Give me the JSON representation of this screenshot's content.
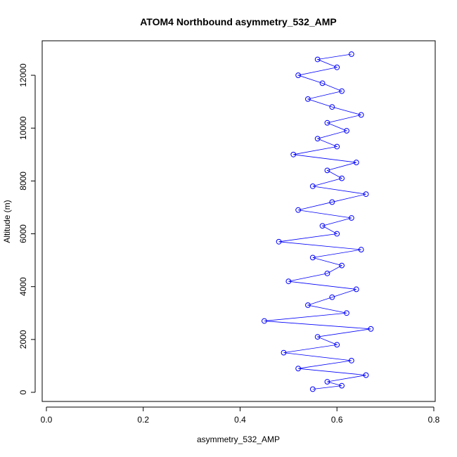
{
  "chart_data": {
    "type": "scatter",
    "title": "ATOM4 Northbound asymmetry_532_AMP",
    "xlabel": "asymmetry_532_AMP",
    "ylabel": "Altitude (m)",
    "xlim": [
      0.0,
      0.8
    ],
    "ylim": [
      0,
      12800
    ],
    "x_ticks": [
      "0.0",
      "0.2",
      "0.4",
      "0.6",
      "0.8"
    ],
    "y_ticks": [
      "0",
      "2000",
      "4000",
      "6000",
      "8000",
      "10000",
      "12000"
    ],
    "grid": false,
    "legend": "none",
    "color": "#0000ff",
    "style": "points connected by lines (open circles)",
    "series": [
      {
        "values": [
          [
            0.55,
            120
          ],
          [
            0.61,
            250
          ],
          [
            0.58,
            400
          ],
          [
            0.66,
            650
          ],
          [
            0.52,
            900
          ],
          [
            0.63,
            1200
          ],
          [
            0.49,
            1500
          ],
          [
            0.6,
            1800
          ],
          [
            0.56,
            2100
          ],
          [
            0.67,
            2400
          ],
          [
            0.45,
            2700
          ],
          [
            0.62,
            3000
          ],
          [
            0.54,
            3300
          ],
          [
            0.59,
            3600
          ],
          [
            0.64,
            3900
          ],
          [
            0.5,
            4200
          ],
          [
            0.58,
            4500
          ],
          [
            0.61,
            4800
          ],
          [
            0.55,
            5100
          ],
          [
            0.65,
            5400
          ],
          [
            0.48,
            5700
          ],
          [
            0.6,
            6000
          ],
          [
            0.57,
            6300
          ],
          [
            0.63,
            6600
          ],
          [
            0.52,
            6900
          ],
          [
            0.59,
            7200
          ],
          [
            0.66,
            7500
          ],
          [
            0.55,
            7800
          ],
          [
            0.61,
            8100
          ],
          [
            0.58,
            8400
          ],
          [
            0.64,
            8700
          ],
          [
            0.51,
            9000
          ],
          [
            0.6,
            9300
          ],
          [
            0.56,
            9600
          ],
          [
            0.62,
            9900
          ],
          [
            0.58,
            10200
          ],
          [
            0.65,
            10500
          ],
          [
            0.59,
            10800
          ],
          [
            0.54,
            11100
          ],
          [
            0.61,
            11400
          ],
          [
            0.57,
            11700
          ],
          [
            0.52,
            12000
          ],
          [
            0.6,
            12300
          ],
          [
            0.56,
            12600
          ],
          [
            0.63,
            12800
          ]
        ]
      }
    ]
  }
}
